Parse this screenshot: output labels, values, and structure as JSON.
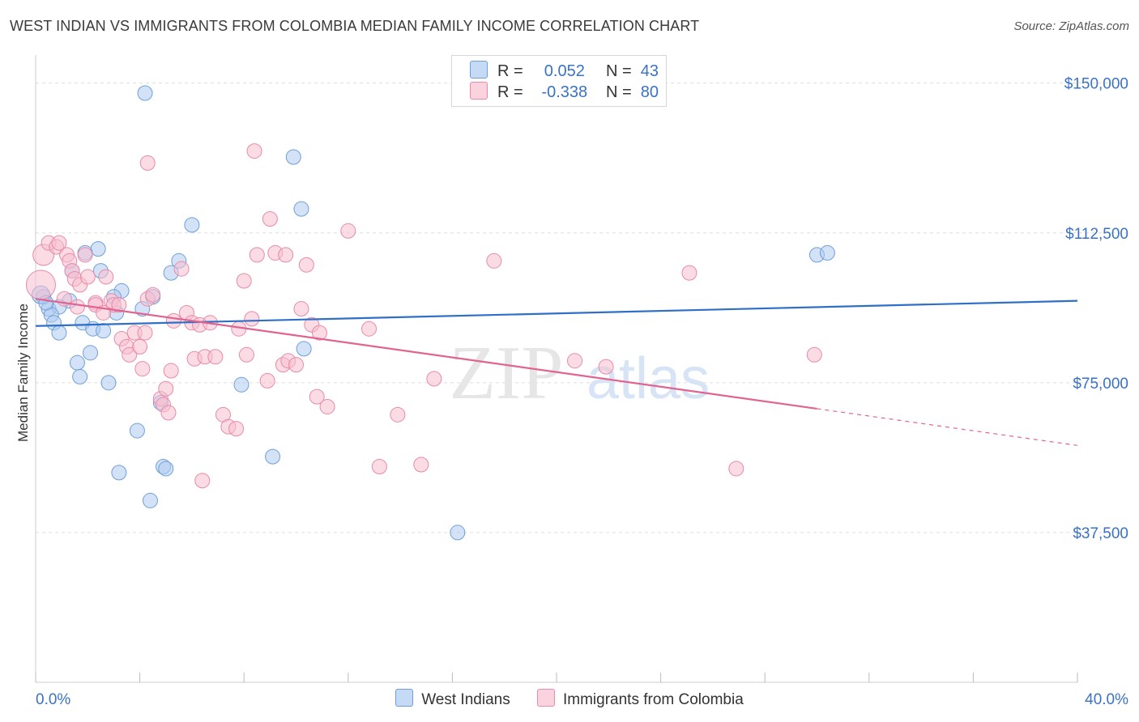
{
  "title": "WEST INDIAN VS IMMIGRANTS FROM COLOMBIA MEDIAN FAMILY INCOME CORRELATION CHART",
  "source": "Source: ZipAtlas.com",
  "watermark": {
    "zip": "ZIP",
    "atlas": "atlas"
  },
  "colors": {
    "blue_fill": "#aecbf0",
    "blue_stroke": "#6f9fd8",
    "blue_line": "#2f6fc6",
    "pink_fill": "#f7bfd0",
    "pink_stroke": "#e88aa8",
    "pink_line": "#e0648f",
    "axis_label": "#3a72c4",
    "grid": "#dddddd"
  },
  "legend_top": [
    {
      "r_label": "R =",
      "r_value": "0.052",
      "n_label": "N =",
      "n_value": "43"
    },
    {
      "r_label": "R =",
      "r_value": "-0.338",
      "n_label": "N =",
      "n_value": "80"
    }
  ],
  "chart_data": {
    "type": "scatter",
    "title": "WEST INDIAN VS IMMIGRANTS FROM COLOMBIA MEDIAN FAMILY INCOME CORRELATION CHART",
    "xlabel": "",
    "ylabel": "Median Family Income",
    "xlim": [
      0,
      40
    ],
    "ylim": [
      0,
      155000
    ],
    "x_tick_labels": [
      "0.0%",
      "40.0%"
    ],
    "y_ticks": [
      37500,
      75000,
      112500,
      150000
    ],
    "y_tick_labels": [
      "$37,500",
      "$75,000",
      "$112,500",
      "$150,000"
    ],
    "series": [
      {
        "name": "West Indians",
        "r": 0.052,
        "n": 43,
        "trend": {
          "x0": 0,
          "y0": 89200,
          "x1": 40,
          "y1": 95500
        },
        "points": [
          [
            4.2,
            147500
          ],
          [
            9.9,
            131500
          ],
          [
            10.2,
            118500
          ],
          [
            6.0,
            114500
          ],
          [
            30.0,
            107000
          ],
          [
            30.4,
            107500
          ],
          [
            2.4,
            108500
          ],
          [
            1.9,
            107500
          ],
          [
            5.5,
            105500
          ],
          [
            2.5,
            103000
          ],
          [
            1.4,
            103000
          ],
          [
            5.2,
            102500
          ],
          [
            3.3,
            98000
          ],
          [
            0.3,
            96500
          ],
          [
            3.0,
            96500
          ],
          [
            4.5,
            96500
          ],
          [
            1.3,
            95500
          ],
          [
            0.5,
            93500
          ],
          [
            0.9,
            94000
          ],
          [
            4.1,
            93500
          ],
          [
            3.1,
            92500
          ],
          [
            0.6,
            92000
          ],
          [
            0.7,
            90000
          ],
          [
            1.8,
            90000
          ],
          [
            2.2,
            88500
          ],
          [
            2.6,
            88000
          ],
          [
            0.9,
            87500
          ],
          [
            10.3,
            83500
          ],
          [
            2.1,
            82500
          ],
          [
            1.6,
            80000
          ],
          [
            1.7,
            76500
          ],
          [
            2.8,
            75000
          ],
          [
            7.9,
            74500
          ],
          [
            4.8,
            70000
          ],
          [
            3.9,
            63000
          ],
          [
            9.1,
            56500
          ],
          [
            4.9,
            54000
          ],
          [
            5.0,
            53500
          ],
          [
            3.2,
            52500
          ],
          [
            4.4,
            45500
          ],
          [
            16.2,
            37500
          ],
          [
            0.2,
            97000
          ],
          [
            0.4,
            95000
          ]
        ]
      },
      {
        "name": "Immigrants from Colombia",
        "r": -0.338,
        "n": 80,
        "trend": {
          "x0": 0,
          "y0": 96000,
          "x1": 30,
          "y1": 68500,
          "dash_x1": 40,
          "dash_y1": 59300
        },
        "points": [
          [
            0.2,
            99500
          ],
          [
            0.3,
            107000
          ],
          [
            0.5,
            110000
          ],
          [
            0.8,
            109000
          ],
          [
            0.9,
            110000
          ],
          [
            1.2,
            107000
          ],
          [
            1.3,
            105500
          ],
          [
            1.4,
            103000
          ],
          [
            1.5,
            101000
          ],
          [
            1.7,
            99500
          ],
          [
            1.9,
            107000
          ],
          [
            2.0,
            101500
          ],
          [
            1.1,
            96000
          ],
          [
            2.3,
            95000
          ],
          [
            2.7,
            101500
          ],
          [
            2.9,
            95500
          ],
          [
            2.3,
            94500
          ],
          [
            3.0,
            94500
          ],
          [
            2.6,
            92500
          ],
          [
            3.3,
            86000
          ],
          [
            3.5,
            84000
          ],
          [
            3.6,
            82000
          ],
          [
            3.8,
            87500
          ],
          [
            4.0,
            84000
          ],
          [
            4.2,
            87500
          ],
          [
            4.3,
            96000
          ],
          [
            4.5,
            97000
          ],
          [
            4.1,
            78500
          ],
          [
            4.3,
            130000
          ],
          [
            4.8,
            71000
          ],
          [
            5.0,
            73500
          ],
          [
            4.9,
            69500
          ],
          [
            5.1,
            67500
          ],
          [
            5.2,
            78000
          ],
          [
            5.3,
            90500
          ],
          [
            5.6,
            103500
          ],
          [
            5.8,
            92500
          ],
          [
            6.1,
            81000
          ],
          [
            6.0,
            90000
          ],
          [
            6.5,
            81500
          ],
          [
            6.9,
            81500
          ],
          [
            6.3,
            89500
          ],
          [
            6.7,
            90000
          ],
          [
            7.2,
            67000
          ],
          [
            7.4,
            64000
          ],
          [
            7.7,
            63500
          ],
          [
            7.8,
            88500
          ],
          [
            8.1,
            82000
          ],
          [
            8.3,
            91000
          ],
          [
            8.5,
            107000
          ],
          [
            8.0,
            100500
          ],
          [
            8.4,
            133000
          ],
          [
            8.9,
            75500
          ],
          [
            9.2,
            107500
          ],
          [
            9.5,
            79500
          ],
          [
            9.7,
            80500
          ],
          [
            9.0,
            116000
          ],
          [
            9.6,
            107000
          ],
          [
            10.0,
            79500
          ],
          [
            10.2,
            93500
          ],
          [
            10.4,
            104500
          ],
          [
            10.6,
            89500
          ],
          [
            10.9,
            87500
          ],
          [
            11.2,
            69000
          ],
          [
            10.8,
            71500
          ],
          [
            12.0,
            113000
          ],
          [
            12.8,
            88500
          ],
          [
            13.2,
            54000
          ],
          [
            15.3,
            76000
          ],
          [
            14.8,
            54500
          ],
          [
            13.9,
            67000
          ],
          [
            17.6,
            105500
          ],
          [
            20.7,
            80500
          ],
          [
            21.9,
            79000
          ],
          [
            25.1,
            102500
          ],
          [
            26.9,
            53500
          ],
          [
            29.9,
            82000
          ],
          [
            6.4,
            50500
          ],
          [
            3.2,
            94500
          ],
          [
            1.6,
            94000
          ]
        ]
      }
    ]
  },
  "bottom_legend": [
    "West Indians",
    "Immigrants from Colombia"
  ]
}
